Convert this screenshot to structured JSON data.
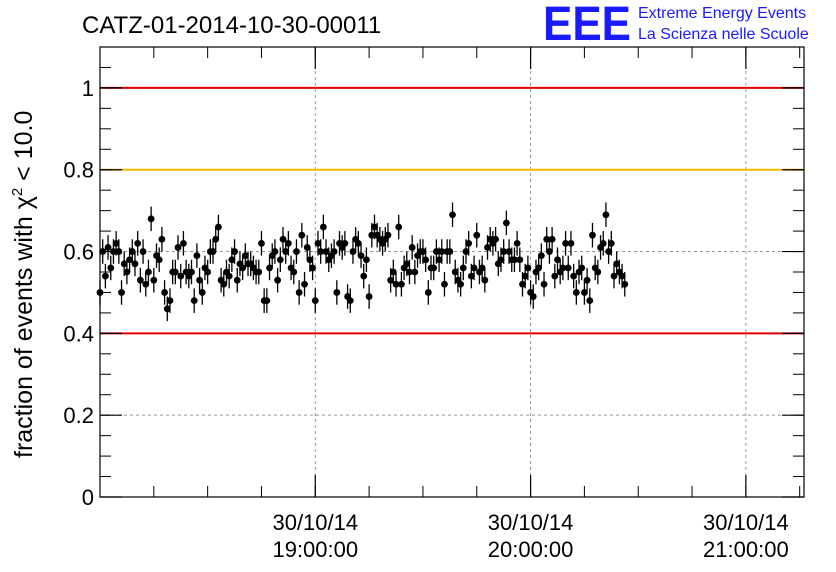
{
  "chart_data": {
    "type": "scatter",
    "title": "CATZ-01-2014-10-30-00011",
    "ylabel": "fraction of events with χ² < 10.0",
    "ylabel_parts": {
      "prefix": "fraction of events with ",
      "chi": "χ",
      "sup": "2",
      "suffix": " < 10.0"
    },
    "xlabel": "",
    "ylim": [
      0,
      1.1
    ],
    "xlim": [
      18.0,
      21.27
    ],
    "y_ticks": [
      {
        "value": 0,
        "label": "0"
      },
      {
        "value": 0.2,
        "label": "0.2"
      },
      {
        "value": 0.4,
        "label": "0.4"
      },
      {
        "value": 0.6,
        "label": "0.6"
      },
      {
        "value": 0.8,
        "label": "0.8"
      },
      {
        "value": 1.0,
        "label": "1"
      }
    ],
    "x_ticks": [
      {
        "value": 19.0,
        "date": "30/10/14",
        "time": "19:00:00"
      },
      {
        "value": 20.0,
        "date": "30/10/14",
        "time": "20:00:00"
      },
      {
        "value": 21.0,
        "date": "30/10/14",
        "time": "21:00:00"
      }
    ],
    "reference_lines": [
      {
        "y": 1.0,
        "color": "#e00000"
      },
      {
        "y": 0.8,
        "color": "#f5b800"
      },
      {
        "y": 0.4,
        "color": "#e00000"
      }
    ],
    "grid": true,
    "marker_color": "#000000",
    "error": 0.03,
    "series": [
      {
        "start_hour": 18.0,
        "step_hours": 0.0125,
        "values": [
          0.5,
          0.6,
          0.54,
          0.61,
          0.56,
          0.6,
          0.62,
          0.6,
          0.5,
          0.57,
          0.55,
          0.58,
          0.6,
          0.57,
          0.62,
          0.53,
          0.6,
          0.52,
          0.55,
          0.68,
          0.53,
          0.59,
          0.58,
          0.63,
          0.5,
          0.46,
          0.48,
          0.55,
          0.55,
          0.61,
          0.54,
          0.62,
          0.55,
          0.54,
          0.55,
          0.48,
          0.59,
          0.53,
          0.5,
          0.56,
          0.55,
          0.6,
          0.6,
          0.63,
          0.66,
          0.53,
          0.52,
          0.55,
          0.54,
          0.58,
          0.6,
          0.53,
          0.57,
          0.56,
          0.59,
          0.57,
          0.57,
          0.56,
          0.55,
          0.55,
          0.62,
          0.48,
          0.48,
          0.56,
          0.59,
          0.6,
          0.53,
          0.58,
          0.63,
          0.6,
          0.62,
          0.56,
          0.55,
          0.6,
          0.5,
          0.64,
          0.52,
          0.61,
          0.58,
          0.56,
          0.48,
          0.62,
          0.6,
          0.66,
          0.6,
          0.58,
          0.59,
          0.6,
          0.5,
          0.62,
          0.61,
          0.62,
          0.49,
          0.48,
          0.6,
          0.63,
          0.62,
          0.59,
          0.54,
          0.58,
          0.49,
          0.64,
          0.66,
          0.64,
          0.63,
          0.62,
          0.63,
          0.64,
          0.53,
          0.55,
          0.52,
          0.66,
          0.52,
          0.56,
          0.57,
          0.55,
          0.61,
          0.55,
          0.59,
          0.6,
          0.6,
          0.58,
          0.5,
          0.56,
          0.56,
          0.6,
          0.58,
          0.6,
          0.52,
          0.6,
          0.6,
          0.69,
          0.55,
          0.53,
          0.52,
          0.56,
          0.6,
          0.62,
          0.54,
          0.56,
          0.64,
          0.55,
          0.56,
          0.53,
          0.61,
          0.63,
          0.62,
          0.63,
          0.57,
          0.58,
          0.6,
          0.67,
          0.6,
          0.58,
          0.58,
          0.62,
          0.58,
          0.52,
          0.54,
          0.56,
          0.5,
          0.49,
          0.55,
          0.56,
          0.59,
          0.52,
          0.63,
          0.6,
          0.63,
          0.54,
          0.58,
          0.55,
          0.56,
          0.62,
          0.56,
          0.62,
          0.54,
          0.5,
          0.55,
          0.56,
          0.5,
          0.53,
          0.48,
          0.64,
          0.56,
          0.55,
          0.61,
          0.62,
          0.69,
          0.6,
          0.62,
          0.54,
          0.57,
          0.55,
          0.54,
          0.52
        ]
      }
    ]
  },
  "logo": {
    "mark": "EEE",
    "line1": "Extreme Energy Events",
    "line2": "La Scienza nelle Scuole",
    "color": "#1a1aff"
  }
}
